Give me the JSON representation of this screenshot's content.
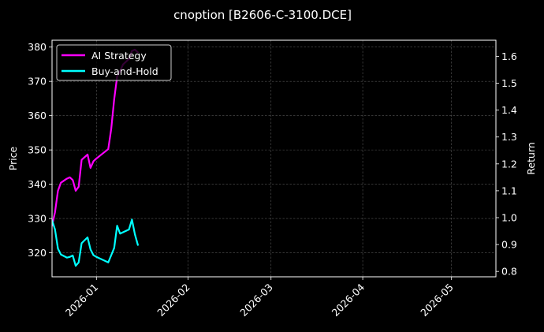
{
  "chart_data": {
    "type": "line",
    "title": "cnoption [B2606-C-3100.DCE]",
    "xlabel": "",
    "ylabel": "Price",
    "y2label": "Return",
    "x_ticks": [
      "2026-01",
      "2026-02",
      "2026-03",
      "2026-04",
      "2026-05"
    ],
    "y_ticks": [
      320,
      330,
      340,
      350,
      360,
      370,
      380
    ],
    "y2_ticks": [
      0.8,
      0.9,
      1.0,
      1.1,
      1.2,
      1.3,
      1.4,
      1.5,
      1.6
    ],
    "xlim": [
      "2025-12-17",
      "2026-05-16"
    ],
    "ylim": [
      313,
      382
    ],
    "y2lim": [
      0.78,
      1.66
    ],
    "grid": true,
    "legend_position": "top-left",
    "background": "#000000",
    "series": [
      {
        "name": "AI Strategy",
        "axis": "right",
        "color": "#ff00ff",
        "x": [
          "2025-12-17",
          "2025-12-18",
          "2025-12-19",
          "2025-12-20",
          "2025-12-22",
          "2025-12-23",
          "2025-12-24",
          "2025-12-25",
          "2025-12-26",
          "2025-12-27",
          "2025-12-29",
          "2025-12-30",
          "2025-12-31",
          "2026-01-01",
          "2026-01-05",
          "2026-01-06",
          "2026-01-07",
          "2026-01-08",
          "2026-01-09",
          "2026-01-10",
          "2026-01-12",
          "2026-01-13",
          "2026-01-14",
          "2026-01-15"
        ],
        "values": [
          0.97,
          1.02,
          1.1,
          1.13,
          1.145,
          1.15,
          1.14,
          1.1,
          1.115,
          1.215,
          1.235,
          1.185,
          1.21,
          1.22,
          1.255,
          1.33,
          1.44,
          1.525,
          1.545,
          1.57,
          1.59,
          1.62,
          1.625,
          1.615
        ]
      },
      {
        "name": "Buy-and-Hold",
        "axis": "left",
        "color": "#00ffff",
        "x": [
          "2025-12-17",
          "2025-12-18",
          "2025-12-19",
          "2025-12-20",
          "2025-12-22",
          "2025-12-23",
          "2025-12-24",
          "2025-12-25",
          "2025-12-26",
          "2025-12-27",
          "2025-12-29",
          "2025-12-30",
          "2025-12-31",
          "2026-01-01",
          "2026-01-05",
          "2026-01-06",
          "2026-01-07",
          "2026-01-08",
          "2026-01-09",
          "2026-01-10",
          "2026-01-12",
          "2026-01-13",
          "2026-01-14",
          "2026-01-15"
        ],
        "values": [
          329.5,
          326.8,
          321.2,
          319.5,
          318.6,
          318.8,
          319.2,
          316.2,
          317.2,
          322.8,
          324.5,
          321.0,
          319.3,
          318.8,
          317.2,
          319.3,
          321.4,
          327.9,
          325.6,
          326.0,
          326.8,
          329.7,
          325.4,
          322.3
        ]
      }
    ]
  }
}
